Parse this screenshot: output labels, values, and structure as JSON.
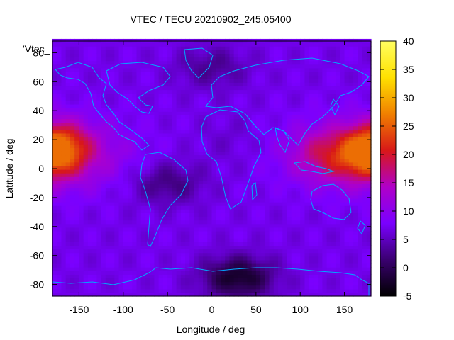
{
  "chart_data": {
    "type": "heatmap",
    "title": "VTEC / TECU 20210902_245.05400",
    "xlabel": "Longitude / deg",
    "ylabel": "Latitude / deg",
    "legend_label": "'Vtec_",
    "xlim": [
      -180,
      180
    ],
    "ylim": [
      -88,
      88
    ],
    "xticks": [
      -150,
      -100,
      -50,
      0,
      50,
      100,
      150
    ],
    "yticks": [
      80,
      60,
      40,
      20,
      0,
      -20,
      -40,
      -60,
      -80
    ],
    "colorbar": {
      "range": [
        -5,
        40
      ],
      "ticks": [
        40,
        35,
        30,
        25,
        20,
        15,
        10,
        5,
        0,
        -5
      ],
      "palette": [
        "#000000",
        "#3a0070",
        "#7a00ff",
        "#b000c8",
        "#d81818",
        "#f08000",
        "#ffe000",
        "#ffff60"
      ]
    },
    "grid_step": {
      "lon": 5,
      "lat": 2.5
    },
    "features": {
      "background_tecu": 7,
      "enhancements": [
        {
          "lon": -170,
          "lat": 15,
          "peak_tecu": 25
        },
        {
          "lon": 165,
          "lat": 10,
          "peak_tecu": 20
        },
        {
          "lon": 120,
          "lat": 10,
          "peak_tecu": 14
        },
        {
          "lon": 20,
          "lat": 20,
          "peak_tecu": 5
        }
      ],
      "depletions": [
        {
          "lon": 30,
          "lat": -75,
          "min_tecu": -3
        },
        {
          "lon": -50,
          "lat": -10,
          "min_tecu": 2
        },
        {
          "lon": 0,
          "lat": 70,
          "min_tecu": 3
        }
      ]
    }
  }
}
